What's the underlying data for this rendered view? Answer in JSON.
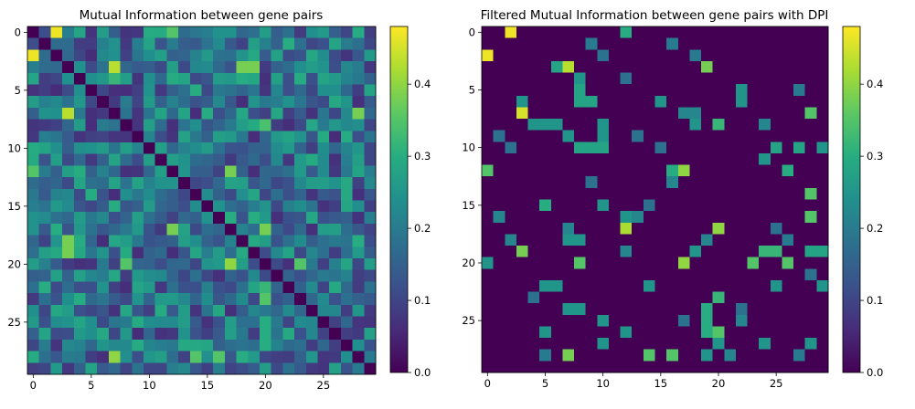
{
  "figure": {
    "panels": [
      {
        "title": "Mutual Information between gene pairs"
      },
      {
        "title": "Filtered Mutual Information between gene pairs with DPI"
      }
    ]
  },
  "chart_data": [
    {
      "type": "heatmap",
      "title": "Mutual Information between gene pairs",
      "xlabel": "",
      "ylabel": "",
      "xlim": [
        -0.5,
        29.5
      ],
      "ylim": [
        29.5,
        -0.5
      ],
      "xticks": [
        0,
        5,
        10,
        15,
        20,
        25
      ],
      "yticks": [
        0,
        5,
        10,
        15,
        20,
        25
      ],
      "colormap": "viridis",
      "colorbar": {
        "min": 0.0,
        "max": 0.48,
        "ticks": [
          0.0,
          0.1,
          0.2,
          0.3,
          0.4
        ]
      },
      "size": 30,
      "seed": 7,
      "noise_range": [
        0.06,
        0.3
      ],
      "peaks": [
        [
          0,
          2,
          0.47
        ],
        [
          2,
          0,
          0.47
        ],
        [
          3,
          7,
          0.43
        ],
        [
          7,
          3,
          0.43
        ],
        [
          0,
          12,
          0.35
        ],
        [
          12,
          0,
          0.35
        ],
        [
          3,
          19,
          0.38
        ],
        [
          19,
          3,
          0.38
        ],
        [
          12,
          17,
          0.38
        ],
        [
          17,
          12,
          0.38
        ],
        [
          12,
          28,
          0.28
        ],
        [
          17,
          20,
          0.38
        ],
        [
          20,
          17,
          0.38
        ],
        [
          18,
          3,
          0.38
        ],
        [
          3,
          18,
          0.38
        ],
        [
          7,
          28,
          0.38
        ],
        [
          28,
          7,
          0.38
        ],
        [
          4,
          7,
          0.32
        ],
        [
          28,
          14,
          0.35
        ],
        [
          28,
          16,
          0.35
        ],
        [
          16,
          17,
          0.3
        ],
        [
          16,
          19,
          0.3
        ],
        [
          20,
          8,
          0.35
        ],
        [
          20,
          17,
          0.4
        ],
        [
          20,
          23,
          0.35
        ],
        [
          23,
          20,
          0.35
        ],
        [
          22,
          20,
          0.32
        ],
        [
          25,
          20,
          0.3
        ],
        [
          26,
          20,
          0.3
        ],
        [
          27,
          20,
          0.3
        ],
        [
          8,
          20,
          0.34
        ],
        [
          28,
          7,
          0.4
        ],
        [
          17,
          2,
          0.3
        ]
      ]
    },
    {
      "type": "heatmap",
      "title": "Filtered Mutual Information between gene pairs with DPI",
      "xlabel": "",
      "ylabel": "",
      "xlim": [
        -0.5,
        29.5
      ],
      "ylim": [
        29.5,
        -0.5
      ],
      "xticks": [
        0,
        5,
        10,
        15,
        20,
        25
      ],
      "yticks": [
        0,
        5,
        10,
        15,
        20,
        25
      ],
      "colormap": "viridis",
      "colorbar": {
        "min": 0.0,
        "max": 0.48,
        "ticks": [
          0.0,
          0.1,
          0.2,
          0.3,
          0.4
        ]
      },
      "size": 30,
      "cells": [
        [
          0,
          2,
          0.47
        ],
        [
          0,
          12,
          0.3
        ],
        [
          1,
          9,
          0.2
        ],
        [
          1,
          16,
          0.2
        ],
        [
          2,
          0,
          0.47
        ],
        [
          2,
          10,
          0.18
        ],
        [
          2,
          18,
          0.2
        ],
        [
          3,
          6,
          0.28
        ],
        [
          3,
          7,
          0.43
        ],
        [
          3,
          19,
          0.38
        ],
        [
          4,
          8,
          0.25
        ],
        [
          4,
          12,
          0.18
        ],
        [
          5,
          8,
          0.28
        ],
        [
          5,
          22,
          0.25
        ],
        [
          5,
          27,
          0.2
        ],
        [
          6,
          3,
          0.25
        ],
        [
          6,
          8,
          0.28
        ],
        [
          6,
          9,
          0.28
        ],
        [
          6,
          15,
          0.25
        ],
        [
          6,
          22,
          0.25
        ],
        [
          7,
          3,
          0.45
        ],
        [
          7,
          17,
          0.22
        ],
        [
          7,
          18,
          0.22
        ],
        [
          7,
          28,
          0.35
        ],
        [
          8,
          4,
          0.25
        ],
        [
          8,
          5,
          0.25
        ],
        [
          8,
          6,
          0.25
        ],
        [
          8,
          10,
          0.25
        ],
        [
          8,
          18,
          0.25
        ],
        [
          8,
          20,
          0.32
        ],
        [
          8,
          24,
          0.22
        ],
        [
          9,
          1,
          0.18
        ],
        [
          9,
          7,
          0.25
        ],
        [
          9,
          10,
          0.25
        ],
        [
          9,
          13,
          0.18
        ],
        [
          10,
          2,
          0.18
        ],
        [
          10,
          8,
          0.28
        ],
        [
          10,
          9,
          0.28
        ],
        [
          10,
          10,
          0.28
        ],
        [
          10,
          15,
          0.18
        ],
        [
          10,
          25,
          0.28
        ],
        [
          10,
          27,
          0.28
        ],
        [
          10,
          29,
          0.25
        ],
        [
          11,
          24,
          0.25
        ],
        [
          12,
          0,
          0.35
        ],
        [
          12,
          17,
          0.4
        ],
        [
          12,
          16,
          0.3
        ],
        [
          12,
          26,
          0.3
        ],
        [
          13,
          9,
          0.18
        ],
        [
          13,
          16,
          0.22
        ],
        [
          14,
          28,
          0.35
        ],
        [
          15,
          5,
          0.3
        ],
        [
          15,
          10,
          0.25
        ],
        [
          15,
          14,
          0.18
        ],
        [
          16,
          1,
          0.22
        ],
        [
          16,
          13,
          0.22
        ],
        [
          16,
          12,
          0.25
        ],
        [
          16,
          28,
          0.35
        ],
        [
          17,
          7,
          0.22
        ],
        [
          17,
          12,
          0.42
        ],
        [
          17,
          20,
          0.4
        ],
        [
          17,
          25,
          0.18
        ],
        [
          18,
          2,
          0.22
        ],
        [
          18,
          7,
          0.25
        ],
        [
          18,
          8,
          0.25
        ],
        [
          18,
          19,
          0.22
        ],
        [
          18,
          26,
          0.2
        ],
        [
          19,
          3,
          0.38
        ],
        [
          19,
          12,
          0.22
        ],
        [
          19,
          18,
          0.25
        ],
        [
          19,
          24,
          0.32
        ],
        [
          19,
          25,
          0.32
        ],
        [
          19,
          28,
          0.28
        ],
        [
          19,
          29,
          0.28
        ],
        [
          20,
          0,
          0.25
        ],
        [
          20,
          8,
          0.35
        ],
        [
          20,
          17,
          0.4
        ],
        [
          20,
          23,
          0.35
        ],
        [
          20,
          26,
          0.35
        ],
        [
          21,
          28,
          0.18
        ],
        [
          22,
          5,
          0.25
        ],
        [
          22,
          6,
          0.25
        ],
        [
          22,
          14,
          0.25
        ],
        [
          22,
          25,
          0.25
        ],
        [
          22,
          29,
          0.25
        ],
        [
          23,
          4,
          0.18
        ],
        [
          23,
          20,
          0.32
        ],
        [
          24,
          7,
          0.25
        ],
        [
          24,
          8,
          0.25
        ],
        [
          24,
          19,
          0.3
        ],
        [
          24,
          22,
          0.18
        ],
        [
          25,
          10,
          0.25
        ],
        [
          25,
          17,
          0.18
        ],
        [
          25,
          19,
          0.3
        ],
        [
          25,
          22,
          0.22
        ],
        [
          26,
          5,
          0.25
        ],
        [
          26,
          12,
          0.25
        ],
        [
          26,
          19,
          0.3
        ],
        [
          26,
          20,
          0.35
        ],
        [
          27,
          10,
          0.25
        ],
        [
          27,
          20,
          0.25
        ],
        [
          27,
          24,
          0.25
        ],
        [
          27,
          28,
          0.25
        ],
        [
          28,
          5,
          0.2
        ],
        [
          28,
          7,
          0.38
        ],
        [
          28,
          14,
          0.35
        ],
        [
          28,
          16,
          0.35
        ],
        [
          28,
          19,
          0.25
        ],
        [
          28,
          21,
          0.22
        ],
        [
          28,
          27,
          0.2
        ]
      ]
    }
  ]
}
